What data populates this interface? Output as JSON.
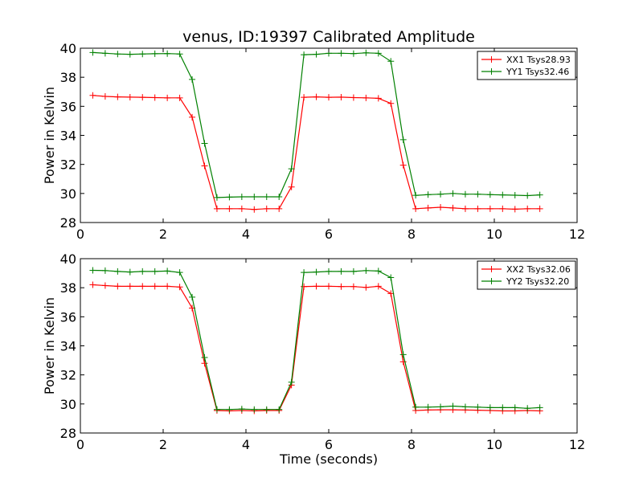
{
  "chart_data": [
    {
      "type": "line",
      "title": "venus, ID:19397 Calibrated Amplitude",
      "xlabel": "",
      "ylabel": "Power in Kelvin",
      "xlim": [
        0,
        12
      ],
      "ylim": [
        28,
        40
      ],
      "xticks": [
        0,
        2,
        4,
        6,
        8,
        10,
        12
      ],
      "yticks": [
        28,
        30,
        32,
        34,
        36,
        38,
        40
      ],
      "grid": false,
      "legend_position": "top-right",
      "series": [
        {
          "name": "XX1 Tsys28.93",
          "color": "#ff0000",
          "marker": "+",
          "x": [
            0.3,
            0.6,
            0.9,
            1.2,
            1.5,
            1.8,
            2.1,
            2.4,
            2.7,
            3.0,
            3.3,
            3.6,
            3.9,
            4.2,
            4.5,
            4.8,
            5.1,
            5.4,
            5.7,
            6.0,
            6.3,
            6.6,
            6.9,
            7.2,
            7.5,
            7.8,
            8.1,
            8.4,
            8.7,
            9.0,
            9.3,
            9.6,
            9.9,
            10.2,
            10.5,
            10.8,
            11.1
          ],
          "values": [
            36.75,
            36.68,
            36.65,
            36.63,
            36.62,
            36.6,
            36.58,
            36.58,
            35.25,
            31.9,
            28.95,
            28.95,
            28.95,
            28.9,
            28.95,
            28.95,
            30.45,
            36.62,
            36.65,
            36.62,
            36.63,
            36.6,
            36.58,
            36.55,
            36.2,
            31.95,
            28.95,
            29.0,
            29.05,
            29.0,
            28.95,
            28.95,
            28.95,
            28.95,
            28.92,
            28.95,
            28.95
          ]
        },
        {
          "name": "YY1 Tsys32.46",
          "color": "#008000",
          "marker": "+",
          "x": [
            0.3,
            0.6,
            0.9,
            1.2,
            1.5,
            1.8,
            2.1,
            2.4,
            2.7,
            3.0,
            3.3,
            3.6,
            3.9,
            4.2,
            4.5,
            4.8,
            5.1,
            5.4,
            5.7,
            6.0,
            6.3,
            6.6,
            6.9,
            7.2,
            7.5,
            7.8,
            8.1,
            8.4,
            8.7,
            9.0,
            9.3,
            9.6,
            9.9,
            10.2,
            10.5,
            10.8,
            11.1
          ],
          "values": [
            39.7,
            39.65,
            39.6,
            39.58,
            39.6,
            39.62,
            39.63,
            39.6,
            37.85,
            33.45,
            29.72,
            29.75,
            29.77,
            29.77,
            29.77,
            29.77,
            31.7,
            39.55,
            39.58,
            39.65,
            39.65,
            39.63,
            39.68,
            39.65,
            39.1,
            33.7,
            29.87,
            29.92,
            29.95,
            30.0,
            29.95,
            29.95,
            29.92,
            29.9,
            29.88,
            29.85,
            29.9
          ]
        }
      ]
    },
    {
      "type": "line",
      "title": "",
      "xlabel": "Time (seconds)",
      "ylabel": "Power in Kelvin",
      "xlim": [
        0,
        12
      ],
      "ylim": [
        28,
        40
      ],
      "xticks": [
        0,
        2,
        4,
        6,
        8,
        10,
        12
      ],
      "yticks": [
        28,
        30,
        32,
        34,
        36,
        38,
        40
      ],
      "grid": false,
      "legend_position": "top-right",
      "series": [
        {
          "name": "XX2 Tsys32.06",
          "color": "#ff0000",
          "marker": "+",
          "x": [
            0.3,
            0.6,
            0.9,
            1.2,
            1.5,
            1.8,
            2.1,
            2.4,
            2.7,
            3.0,
            3.3,
            3.6,
            3.9,
            4.2,
            4.5,
            4.8,
            5.1,
            5.4,
            5.7,
            6.0,
            6.3,
            6.6,
            6.9,
            7.2,
            7.5,
            7.8,
            8.1,
            8.4,
            8.7,
            9.0,
            9.3,
            9.6,
            9.9,
            10.2,
            10.5,
            10.8,
            11.1
          ],
          "values": [
            38.2,
            38.15,
            38.1,
            38.1,
            38.1,
            38.1,
            38.1,
            38.05,
            36.6,
            32.8,
            29.55,
            29.52,
            29.55,
            29.52,
            29.55,
            29.55,
            31.3,
            38.08,
            38.1,
            38.1,
            38.08,
            38.08,
            38.02,
            38.1,
            37.6,
            32.9,
            29.55,
            29.58,
            29.6,
            29.6,
            29.58,
            29.57,
            29.55,
            29.52,
            29.52,
            29.55,
            29.52
          ]
        },
        {
          "name": "YY2 Tsys32.20",
          "color": "#008000",
          "marker": "+",
          "x": [
            0.3,
            0.6,
            0.9,
            1.2,
            1.5,
            1.8,
            2.1,
            2.4,
            2.7,
            3.0,
            3.3,
            3.6,
            3.9,
            4.2,
            4.5,
            4.8,
            5.1,
            5.4,
            5.7,
            6.0,
            6.3,
            6.6,
            6.9,
            7.2,
            7.5,
            7.8,
            8.1,
            8.4,
            8.7,
            9.0,
            9.3,
            9.6,
            9.9,
            10.2,
            10.5,
            10.8,
            11.1
          ],
          "values": [
            39.2,
            39.18,
            39.12,
            39.08,
            39.12,
            39.12,
            39.15,
            39.05,
            37.35,
            33.2,
            29.62,
            29.62,
            29.65,
            29.62,
            29.62,
            29.62,
            31.5,
            39.05,
            39.08,
            39.12,
            39.12,
            39.12,
            39.18,
            39.15,
            38.7,
            33.4,
            29.78,
            29.78,
            29.8,
            29.85,
            29.8,
            29.78,
            29.75,
            29.75,
            29.75,
            29.7,
            29.75
          ]
        }
      ]
    }
  ]
}
